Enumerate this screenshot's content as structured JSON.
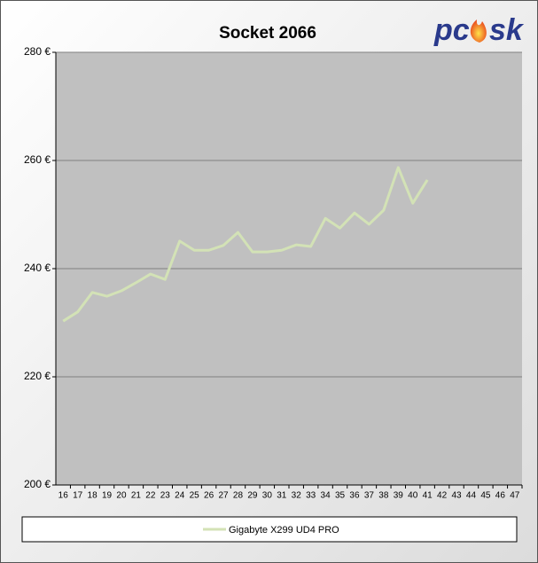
{
  "chart_data": {
    "type": "line",
    "title": "Socket 2066",
    "logo": [
      "pc",
      "sk"
    ],
    "categories": [
      "16",
      "17",
      "18",
      "19",
      "20",
      "21",
      "22",
      "23",
      "24",
      "25",
      "26",
      "27",
      "28",
      "29",
      "30",
      "31",
      "32",
      "33",
      "34",
      "35",
      "36",
      "37",
      "38",
      "39",
      "40",
      "41",
      "42",
      "43",
      "44",
      "45",
      "46",
      "47"
    ],
    "series": [
      {
        "name": "Gigabyte X299 UD4 PRO",
        "color": "#d3e2b6",
        "values": [
          230.3,
          232,
          235.6,
          234.9,
          235.9,
          237.4,
          239,
          238,
          245.1,
          243.4,
          243.4,
          244.3,
          246.7,
          243.1,
          243.1,
          243.4,
          244.4,
          244.1,
          249.3,
          247.5,
          250.3,
          248.2,
          250.8,
          258.7,
          252.1,
          256.4,
          null,
          null,
          null,
          null,
          null,
          null
        ]
      }
    ],
    "ylim": [
      200,
      280
    ],
    "yticks": [
      {
        "value": 200,
        "label": "200 €"
      },
      {
        "value": 220,
        "label": "220 €"
      },
      {
        "value": 240,
        "label": "240 €"
      },
      {
        "value": 260,
        "label": "260 €"
      },
      {
        "value": 280,
        "label": "280 €"
      }
    ],
    "grid": true
  }
}
